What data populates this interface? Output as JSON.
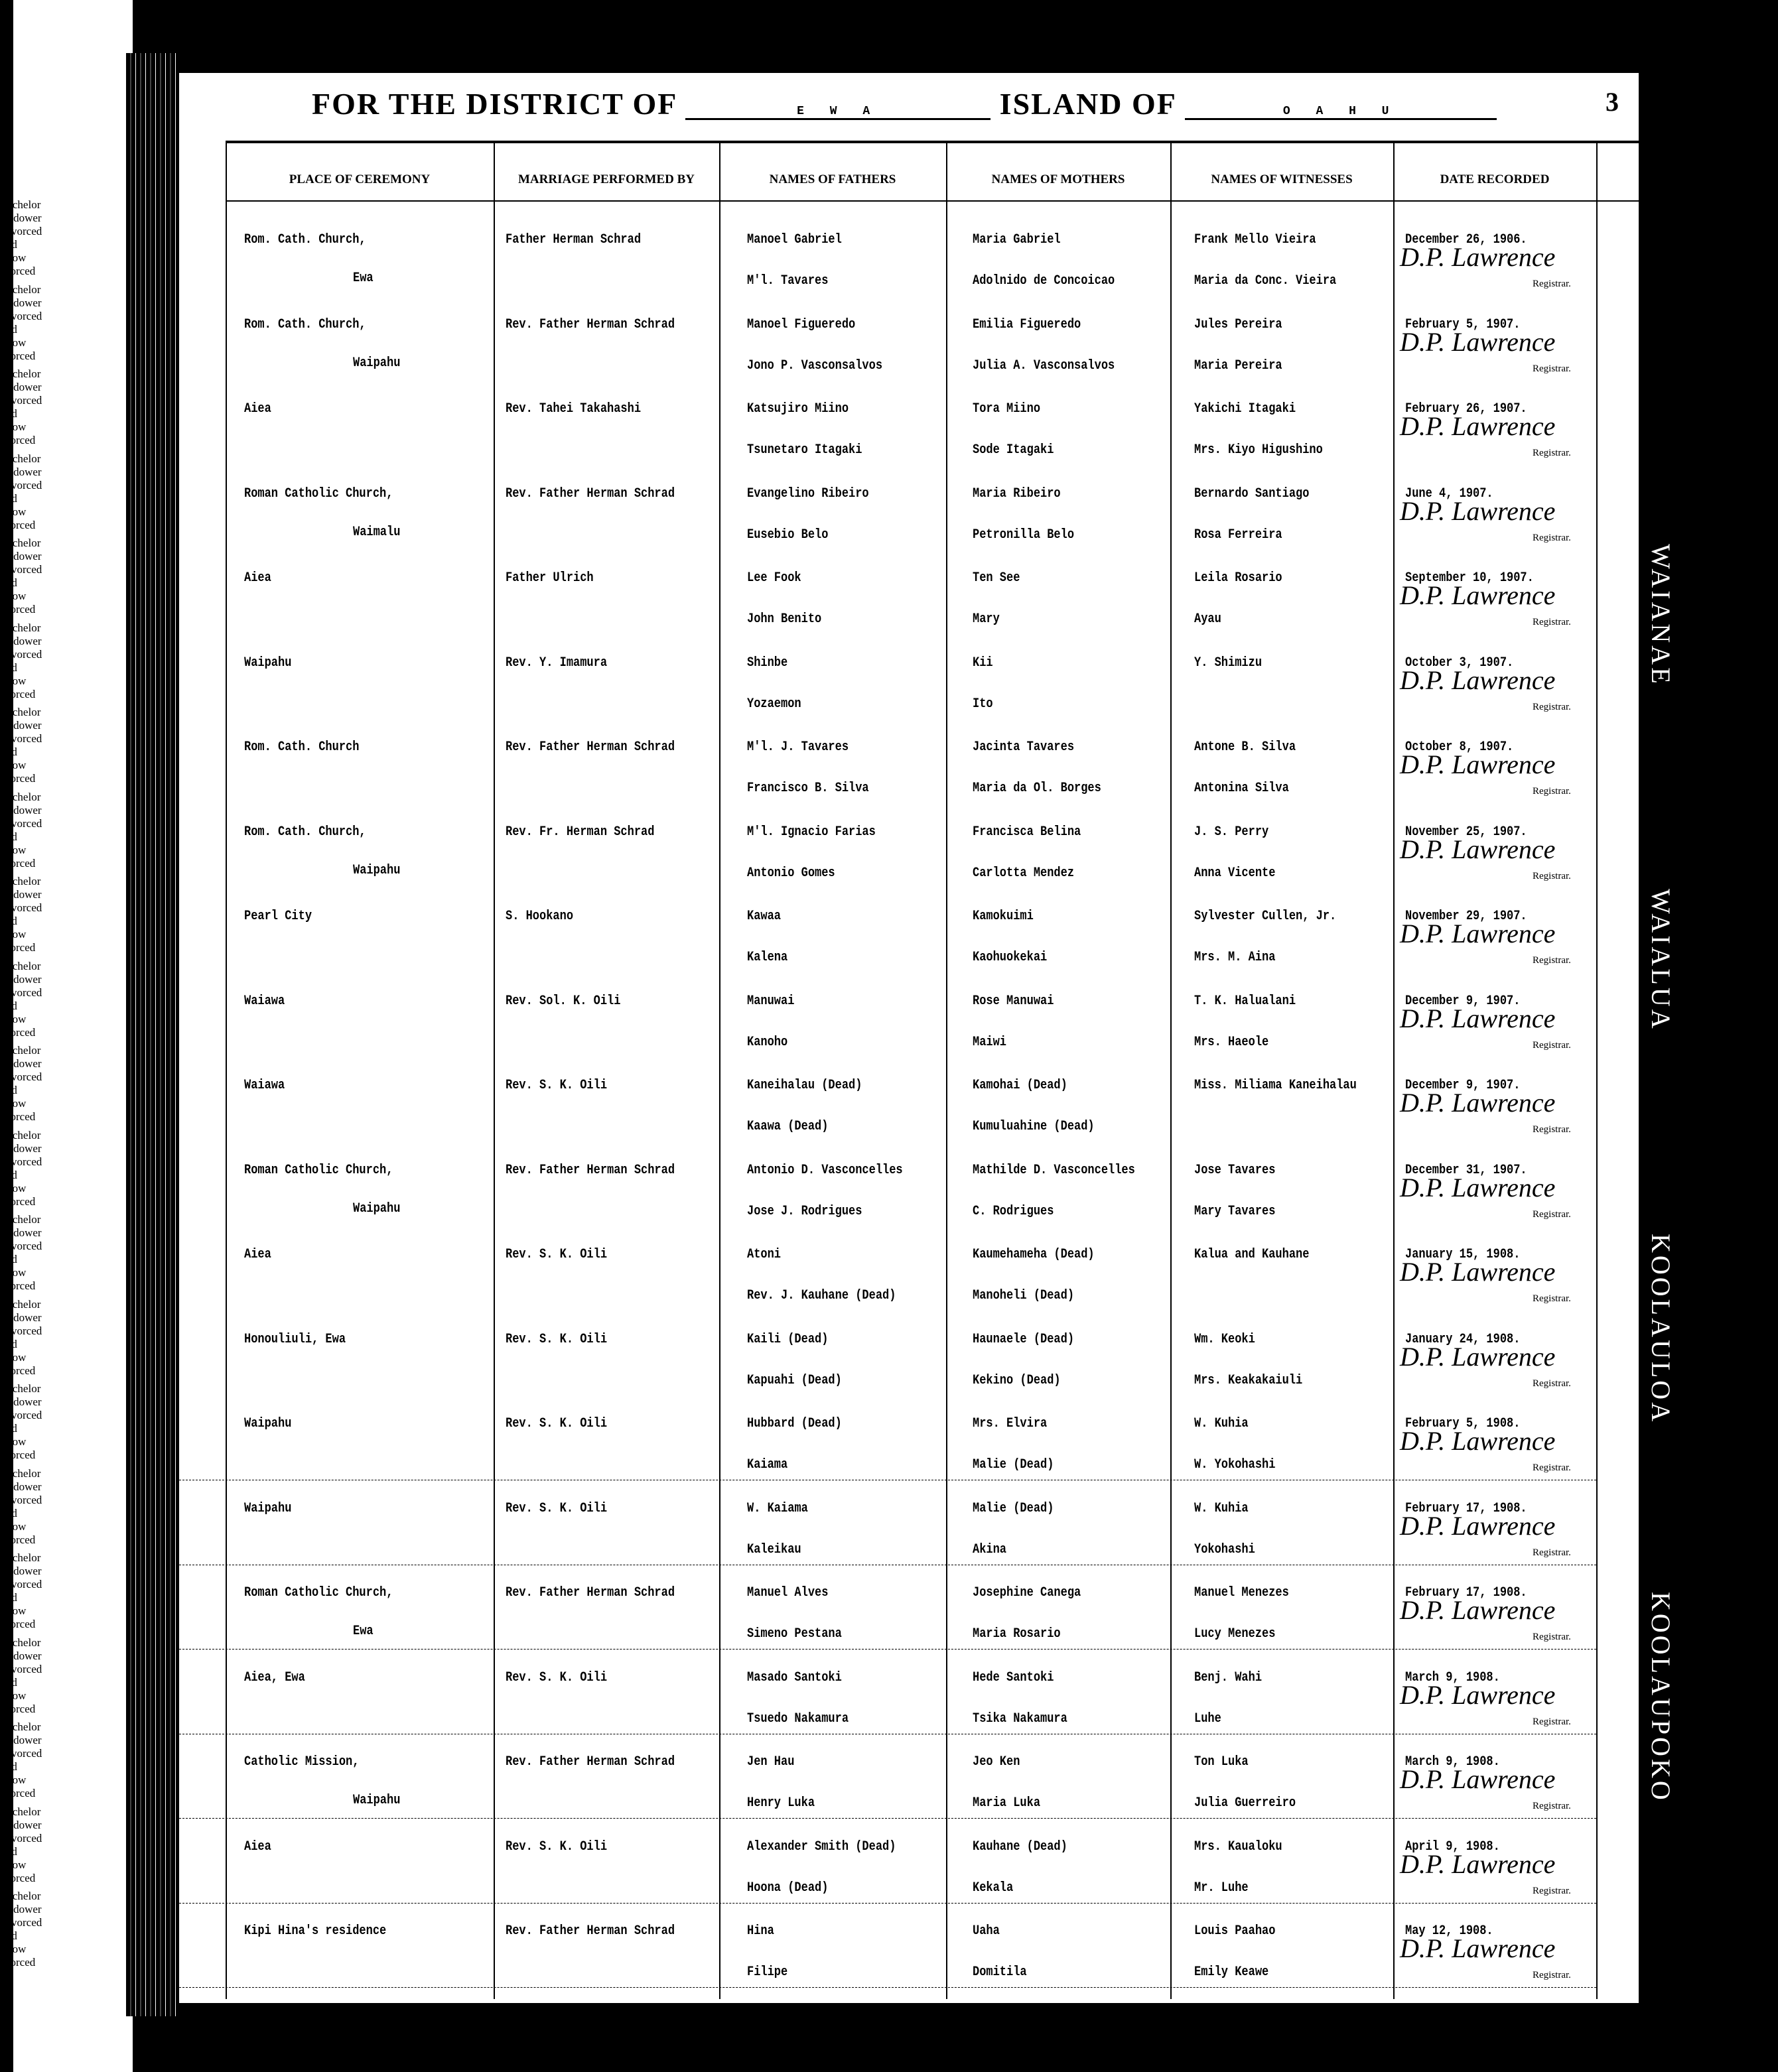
{
  "header": {
    "district_label": "FOR THE DISTRICT OF",
    "district_value": "E W A",
    "island_label": "ISLAND OF",
    "island_value": "O A H U",
    "page_number": "3"
  },
  "columns": [
    "PLACE OF CEREMONY",
    "MARRIAGE PERFORMED BY",
    "NAMES OF FATHERS",
    "NAMES OF MOTHERS",
    "NAMES OF WITNESSES",
    "DATE RECORDED"
  ],
  "margin_labels": [
    "Bachelor",
    "Widower",
    "Divorced",
    "Maid",
    "Widow",
    "Divorced"
  ],
  "side_labels": [
    "WAIANAE",
    "WAIALUA",
    "KOOLAULOA",
    "KOOLAUPOKO"
  ],
  "signature": "D.P. Lawrence",
  "registrar_label": "Registrar.",
  "entries": [
    {
      "place": [
        "Rom. Cath. Church,",
        "Ewa"
      ],
      "by": "Father Herman Schrad",
      "fathers": [
        "Manoel Gabriel",
        "M'l. Tavares"
      ],
      "mothers": [
        "Maria Gabriel",
        "Adolnido de Concoicao"
      ],
      "witnesses": [
        "Frank Mello Vieira",
        "Maria da Conc. Vieira"
      ],
      "date": "December 26, 1906."
    },
    {
      "place": [
        "Rom. Cath. Church,",
        "Waipahu"
      ],
      "by": "Rev. Father Herman Schrad",
      "fathers": [
        "Manoel Figueredo",
        "Jono P. Vasconsalvos"
      ],
      "mothers": [
        "Emilia Figueredo",
        "Julia A. Vasconsalvos"
      ],
      "witnesses": [
        "Jules Pereira",
        "Maria Pereira"
      ],
      "date": "February 5, 1907."
    },
    {
      "place": [
        "Aiea",
        ""
      ],
      "by": "Rev. Tahei Takahashi",
      "fathers": [
        "Katsujiro Miino",
        "Tsunetaro Itagaki"
      ],
      "mothers": [
        "Tora Miino",
        "Sode Itagaki"
      ],
      "witnesses": [
        "Yakichi Itagaki",
        "Mrs. Kiyo Higushino"
      ],
      "date": "February 26, 1907."
    },
    {
      "place": [
        "Roman Catholic Church,",
        "Waimalu"
      ],
      "by": "Rev. Father Herman Schrad",
      "fathers": [
        "Evangelino Ribeiro",
        "Eusebio Belo"
      ],
      "mothers": [
        "Maria Ribeiro",
        "Petronilla Belo"
      ],
      "witnesses": [
        "Bernardo Santiago",
        "Rosa Ferreira"
      ],
      "date": "June 4, 1907."
    },
    {
      "place": [
        "Aiea",
        ""
      ],
      "by": "Father Ulrich",
      "fathers": [
        "Lee Fook",
        "John Benito"
      ],
      "mothers": [
        "Ten See",
        "Mary"
      ],
      "witnesses": [
        "Leila Rosario",
        "Ayau"
      ],
      "date": "September 10, 1907."
    },
    {
      "place": [
        "Waipahu",
        ""
      ],
      "by": "Rev. Y. Imamura",
      "fathers": [
        "Shinbe",
        "Yozaemon"
      ],
      "mothers": [
        "Kii",
        "Ito"
      ],
      "witnesses": [
        "Y. Shimizu",
        ""
      ],
      "date": "October 3, 1907."
    },
    {
      "place": [
        "Rom. Cath. Church",
        ""
      ],
      "by": "Rev. Father Herman Schrad",
      "fathers": [
        "M'l. J. Tavares",
        "Francisco B. Silva"
      ],
      "mothers": [
        "Jacinta Tavares",
        "Maria da Ol. Borges"
      ],
      "witnesses": [
        "Antone B. Silva",
        "Antonina Silva"
      ],
      "date": "October 8, 1907."
    },
    {
      "place": [
        "Rom. Cath. Church,",
        "Waipahu"
      ],
      "by": "Rev. Fr. Herman Schrad",
      "fathers": [
        "M'l. Ignacio Farias",
        "Antonio Gomes"
      ],
      "mothers": [
        "Francisca Belina",
        "Carlotta Mendez"
      ],
      "witnesses": [
        "J. S. Perry",
        "Anna Vicente"
      ],
      "date": "November 25, 1907."
    },
    {
      "place": [
        "Pearl City",
        ""
      ],
      "by": "S. Hookano",
      "fathers": [
        "Kawaa",
        "Kalena"
      ],
      "mothers": [
        "Kamokuimi",
        "Kaohuokekai"
      ],
      "witnesses": [
        "Sylvester Cullen, Jr.",
        "Mrs. M. Aina"
      ],
      "date": "November 29, 1907."
    },
    {
      "place": [
        "Waiawa",
        ""
      ],
      "by": "Rev. Sol. K. Oili",
      "fathers": [
        "Manuwai",
        "Kanoho"
      ],
      "mothers": [
        "Rose Manuwai",
        "Maiwi"
      ],
      "witnesses": [
        "T. K. Halualani",
        "Mrs. Haeole"
      ],
      "date": "December 9, 1907."
    },
    {
      "place": [
        "Waiawa",
        ""
      ],
      "by": "Rev. S. K. Oili",
      "fathers": [
        "Kaneihalau  (Dead)",
        "Kaawa  (Dead)"
      ],
      "mothers": [
        "Kamohai  (Dead)",
        "Kumuluahine  (Dead)"
      ],
      "witnesses": [
        "Miss. Miliama Kaneihalau",
        ""
      ],
      "date": "December 9, 1907."
    },
    {
      "place": [
        "Roman Catholic Church,",
        "Waipahu"
      ],
      "by": "Rev. Father Herman Schrad",
      "fathers": [
        "Antonio D. Vasconcelles",
        "Jose J. Rodrigues"
      ],
      "mothers": [
        "Mathilde D. Vasconcelles",
        "C. Rodrigues"
      ],
      "witnesses": [
        "Jose Tavares",
        "Mary Tavares"
      ],
      "date": "December 31, 1907."
    },
    {
      "place": [
        "Aiea",
        ""
      ],
      "by": "Rev. S. K. Oili",
      "fathers": [
        "Atoni",
        "Rev. J. Kauhane  (Dead)"
      ],
      "mothers": [
        "Kaumehameha  (Dead)",
        "Manoheli  (Dead)"
      ],
      "witnesses": [
        "Kalua and Kauhane",
        ""
      ],
      "date": "January 15, 1908."
    },
    {
      "place": [
        "Honouliuli, Ewa",
        ""
      ],
      "by": "Rev. S. K. Oili",
      "fathers": [
        "Kaili   (Dead)",
        "Kapuahi   (Dead)"
      ],
      "mothers": [
        "Haunaele   (Dead)",
        "Kekino   (Dead)"
      ],
      "witnesses": [
        "Wm. Keoki",
        "Mrs. Keakakaiuli"
      ],
      "date": "January 24, 1908."
    },
    {
      "place": [
        "Waipahu",
        ""
      ],
      "by": "Rev. S. K. Oili",
      "fathers": [
        "Hubbard  (Dead)",
        "Kaiama"
      ],
      "mothers": [
        "Mrs. Elvira",
        "Malie  (Dead)"
      ],
      "witnesses": [
        "W. Kuhia",
        "W. Yokohashi"
      ],
      "date": "February 5, 1908."
    },
    {
      "place": [
        "Waipahu",
        ""
      ],
      "by": "Rev. S. K. Oili",
      "fathers": [
        "W. Kaiama",
        "Kaleikau"
      ],
      "mothers": [
        "Malie  (Dead)",
        "Akina"
      ],
      "witnesses": [
        "W. Kuhia",
        "Yokohashi"
      ],
      "date": "February 17, 1908."
    },
    {
      "place": [
        "Roman Catholic Church,",
        "Ewa"
      ],
      "by": "Rev. Father Herman Schrad",
      "fathers": [
        "Manuel Alves",
        "Simeno Pestana"
      ],
      "mothers": [
        "Josephine Canega",
        "Maria Rosario"
      ],
      "witnesses": [
        "Manuel Menezes",
        "Lucy Menezes"
      ],
      "date": "February 17, 1908."
    },
    {
      "place": [
        "Aiea, Ewa",
        ""
      ],
      "by": "Rev. S. K. Oili",
      "fathers": [
        "Masado Santoki",
        "Tsuedo Nakamura"
      ],
      "mothers": [
        "Hede Santoki",
        "Tsika Nakamura"
      ],
      "witnesses": [
        "Benj. Wahi",
        "Luhe"
      ],
      "date": "March 9, 1908."
    },
    {
      "place": [
        "Catholic Mission,",
        "Waipahu"
      ],
      "by": "Rev. Father Herman Schrad",
      "fathers": [
        "Jen Hau",
        "Henry Luka"
      ],
      "mothers": [
        "Jeo Ken",
        "Maria Luka"
      ],
      "witnesses": [
        "Ton Luka",
        "Julia Guerreiro"
      ],
      "date": "March 9, 1908."
    },
    {
      "place": [
        "Aiea",
        ""
      ],
      "by": "Rev. S. K. Oili",
      "fathers": [
        "Alexander Smith  (Dead)",
        "Hoona  (Dead)"
      ],
      "mothers": [
        "Kauhane  (Dead)",
        "Kekala"
      ],
      "witnesses": [
        "Mrs. Kaualoku",
        "Mr. Luhe"
      ],
      "date": "April 9, 1908."
    },
    {
      "place": [
        "Kipi Hina's residence",
        ""
      ],
      "by": "Rev. Father Herman Schrad",
      "fathers": [
        "Hina",
        "Filipe"
      ],
      "mothers": [
        "Uaha",
        "Domitila"
      ],
      "witnesses": [
        "Louis Paahao",
        "Emily Keawe"
      ],
      "date": "May 12, 1908."
    }
  ]
}
